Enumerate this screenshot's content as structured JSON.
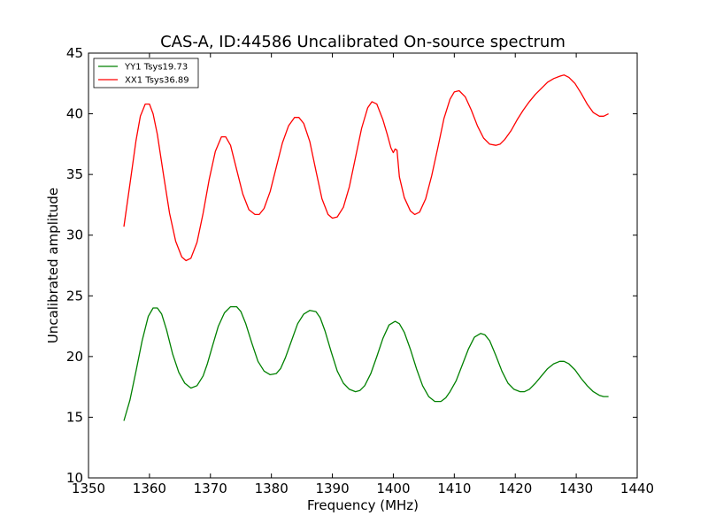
{
  "chart_data": {
    "type": "line",
    "title": "CAS-A, ID:44586 Uncalibrated On-source spectrum",
    "xlabel": "Frequency (MHz)",
    "ylabel": "Uncalibrated amplitude",
    "xlim": [
      1350,
      1440
    ],
    "ylim": [
      10,
      45
    ],
    "xticks": [
      1350,
      1360,
      1370,
      1380,
      1390,
      1400,
      1410,
      1420,
      1430,
      1440
    ],
    "yticks": [
      10,
      15,
      20,
      25,
      30,
      35,
      40,
      45
    ],
    "grid": false,
    "legend_position": "top-left",
    "series": [
      {
        "name": "YY1 Tsys19.73",
        "color": "#008000",
        "x": [
          1355.8,
          1356.8,
          1357.8,
          1358.8,
          1359.8,
          1360.6,
          1361.3,
          1362.0,
          1362.8,
          1363.8,
          1364.8,
          1365.8,
          1366.8,
          1367.8,
          1368.8,
          1369.5,
          1370.3,
          1371.3,
          1372.3,
          1373.3,
          1374.3,
          1375.0,
          1375.8,
          1376.8,
          1377.8,
          1378.8,
          1379.8,
          1380.8,
          1381.5,
          1382.3,
          1383.3,
          1384.3,
          1385.3,
          1386.3,
          1387.3,
          1388.0,
          1388.8,
          1389.8,
          1390.8,
          1391.8,
          1392.8,
          1393.8,
          1394.5,
          1395.3,
          1396.3,
          1397.3,
          1398.3,
          1399.3,
          1400.3,
          1401.0,
          1401.8,
          1402.8,
          1403.8,
          1404.8,
          1405.8,
          1406.8,
          1407.8,
          1408.6,
          1409.3,
          1410.3,
          1411.3,
          1412.3,
          1413.3,
          1414.3,
          1415.0,
          1415.8,
          1416.8,
          1417.8,
          1418.8,
          1419.8,
          1420.8,
          1421.5,
          1422.3,
          1423.3,
          1424.3,
          1425.3,
          1426.3,
          1427.3,
          1428.0,
          1428.8,
          1429.8,
          1430.8,
          1431.8,
          1432.8,
          1433.8,
          1434.5,
          1435.3
        ],
        "y": [
          14.7,
          16.4,
          18.8,
          21.3,
          23.3,
          24.0,
          24.0,
          23.5,
          22.2,
          20.2,
          18.7,
          17.8,
          17.4,
          17.6,
          18.4,
          19.4,
          20.8,
          22.5,
          23.6,
          24.1,
          24.1,
          23.7,
          22.7,
          21.1,
          19.6,
          18.8,
          18.5,
          18.6,
          19.0,
          19.9,
          21.3,
          22.7,
          23.5,
          23.8,
          23.7,
          23.2,
          22.1,
          20.4,
          18.8,
          17.8,
          17.3,
          17.1,
          17.2,
          17.6,
          18.6,
          20.0,
          21.5,
          22.6,
          22.9,
          22.7,
          22.0,
          20.6,
          19.0,
          17.6,
          16.7,
          16.3,
          16.3,
          16.6,
          17.1,
          18.0,
          19.3,
          20.6,
          21.6,
          21.9,
          21.8,
          21.3,
          20.1,
          18.8,
          17.8,
          17.3,
          17.1,
          17.1,
          17.3,
          17.8,
          18.4,
          19.0,
          19.4,
          19.6,
          19.6,
          19.4,
          18.9,
          18.2,
          17.6,
          17.1,
          16.8,
          16.7,
          16.7
        ]
      },
      {
        "name": "XX1 Tsys36.89",
        "color": "#ff0000",
        "x": [
          1355.8,
          1356.8,
          1357.8,
          1358.5,
          1359.3,
          1360.0,
          1360.6,
          1361.3,
          1362.3,
          1363.3,
          1364.3,
          1365.3,
          1366.0,
          1366.8,
          1367.8,
          1368.8,
          1369.8,
          1370.8,
          1371.8,
          1372.5,
          1373.3,
          1374.3,
          1375.3,
          1376.3,
          1377.3,
          1378.0,
          1378.8,
          1379.8,
          1380.8,
          1381.8,
          1382.8,
          1383.8,
          1384.5,
          1385.3,
          1386.3,
          1387.3,
          1388.3,
          1389.3,
          1390.0,
          1390.8,
          1391.8,
          1392.8,
          1393.8,
          1394.8,
          1395.8,
          1396.5,
          1397.3,
          1398.3,
          1399.0,
          1399.6,
          1400.0,
          1400.3,
          1400.6,
          1401.0,
          1401.8,
          1402.8,
          1403.5,
          1404.3,
          1405.3,
          1406.3,
          1407.3,
          1408.3,
          1409.3,
          1410.0,
          1410.8,
          1411.8,
          1412.8,
          1413.8,
          1414.8,
          1415.8,
          1416.8,
          1417.5,
          1418.3,
          1419.3,
          1420.3,
          1421.3,
          1422.3,
          1423.3,
          1424.3,
          1425.3,
          1426.3,
          1427.3,
          1428.0,
          1428.8,
          1429.8,
          1430.8,
          1431.8,
          1432.8,
          1433.8,
          1434.5,
          1435.3
        ],
        "y": [
          30.7,
          34.2,
          37.8,
          39.8,
          40.8,
          40.8,
          40.0,
          38.3,
          35.0,
          31.8,
          29.5,
          28.2,
          27.9,
          28.1,
          29.4,
          31.8,
          34.6,
          36.9,
          38.1,
          38.1,
          37.4,
          35.4,
          33.4,
          32.1,
          31.7,
          31.7,
          32.2,
          33.6,
          35.6,
          37.6,
          39.0,
          39.7,
          39.7,
          39.2,
          37.7,
          35.3,
          33.0,
          31.7,
          31.4,
          31.5,
          32.3,
          34.0,
          36.4,
          38.8,
          40.5,
          41.0,
          40.8,
          39.5,
          38.3,
          37.2,
          36.8,
          37.1,
          37.0,
          34.8,
          33.1,
          32.0,
          31.7,
          31.9,
          33.0,
          34.9,
          37.2,
          39.6,
          41.2,
          41.8,
          41.9,
          41.4,
          40.3,
          39.0,
          38.0,
          37.5,
          37.4,
          37.5,
          37.9,
          38.6,
          39.5,
          40.3,
          41.0,
          41.6,
          42.1,
          42.6,
          42.9,
          43.1,
          43.2,
          43.0,
          42.5,
          41.7,
          40.8,
          40.1,
          39.8,
          39.8,
          40.0
        ]
      }
    ]
  }
}
